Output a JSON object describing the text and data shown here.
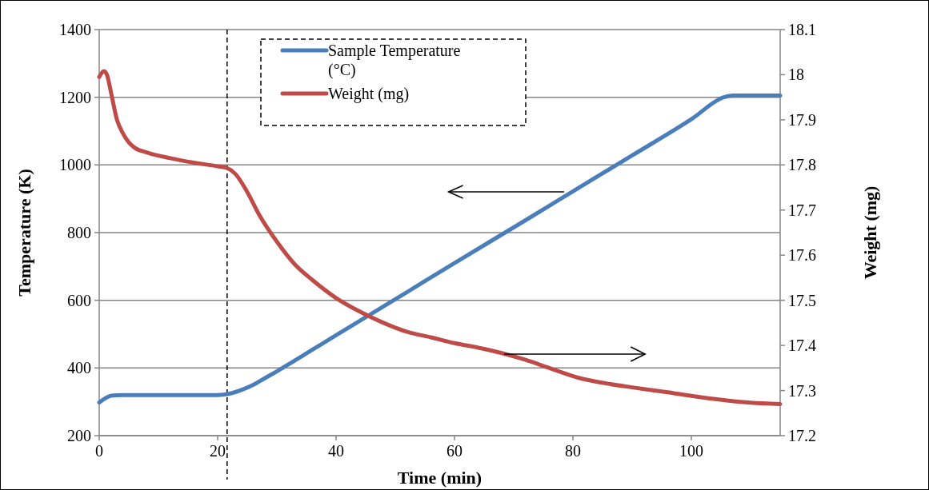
{
  "chart_data": {
    "type": "line",
    "xlabel": "Time (min)",
    "ylabel": "Temperature (K)",
    "y2label": "Weight (mg)",
    "xlim": [
      0,
      115
    ],
    "xticks": [
      0,
      20,
      40,
      60,
      80,
      100
    ],
    "ylim": [
      200,
      1400
    ],
    "yticks": [
      200,
      400,
      600,
      800,
      1000,
      1200,
      1400
    ],
    "y2lim": [
      17.2,
      18.1
    ],
    "y2ticks": [
      {
        "value": 17.2,
        "label": "17.2"
      },
      {
        "value": 17.3,
        "label": "17.3"
      },
      {
        "value": 17.4,
        "label": "17.4"
      },
      {
        "value": 17.5,
        "label": "17.5"
      },
      {
        "value": 17.6,
        "label": "17.6"
      },
      {
        "value": 17.7,
        "label": "17.7"
      },
      {
        "value": 17.8,
        "label": "17.8"
      },
      {
        "value": 17.9,
        "label": "17.9"
      },
      {
        "value": 18,
        "label": "18"
      },
      {
        "value": 18.1,
        "label": "18.1"
      }
    ],
    "grid": "y",
    "legend": "top",
    "line_style": "solid",
    "ref_lines": [
      {
        "axis": "x",
        "value": 21.6,
        "line_style": "dashed",
        "color": "#000000"
      }
    ],
    "series": [
      {
        "name": "Sample Temperature (°C)",
        "color": "#4a7ebb",
        "x": [
          0,
          1,
          2,
          4,
          10,
          20,
          22,
          24,
          26,
          28,
          30,
          40,
          50,
          60,
          71,
          80,
          90,
          100,
          105.5,
          107,
          115
        ],
        "values": [
          298,
          310,
          318,
          320,
          320,
          320,
          324,
          335,
          350,
          370,
          390,
          497,
          603,
          710,
          826,
          922,
          1028,
          1135,
          1200,
          1205,
          1205
        ]
      },
      {
        "name": "Weight (mg)",
        "color": "#be4b48",
        "axis": "y2",
        "x": [
          0,
          0.5,
          0.8,
          1.3,
          2,
          3,
          4,
          5,
          6,
          8,
          12,
          16,
          20,
          21.6,
          23,
          25,
          27,
          30,
          33,
          36,
          40,
          44,
          48,
          52,
          56,
          60,
          64,
          68,
          72,
          76,
          81,
          86,
          90,
          96,
          100,
          106,
          110,
          115
        ],
        "values": [
          17.995,
          18.005,
          18.008,
          18.0,
          17.96,
          17.9,
          17.87,
          17.85,
          17.838,
          17.828,
          17.815,
          17.805,
          17.797,
          17.793,
          17.78,
          17.74,
          17.69,
          17.63,
          17.58,
          17.545,
          17.505,
          17.475,
          17.45,
          17.43,
          17.418,
          17.405,
          17.395,
          17.383,
          17.368,
          17.35,
          17.328,
          17.315,
          17.307,
          17.296,
          17.288,
          17.278,
          17.273,
          17.27
        ]
      }
    ]
  }
}
